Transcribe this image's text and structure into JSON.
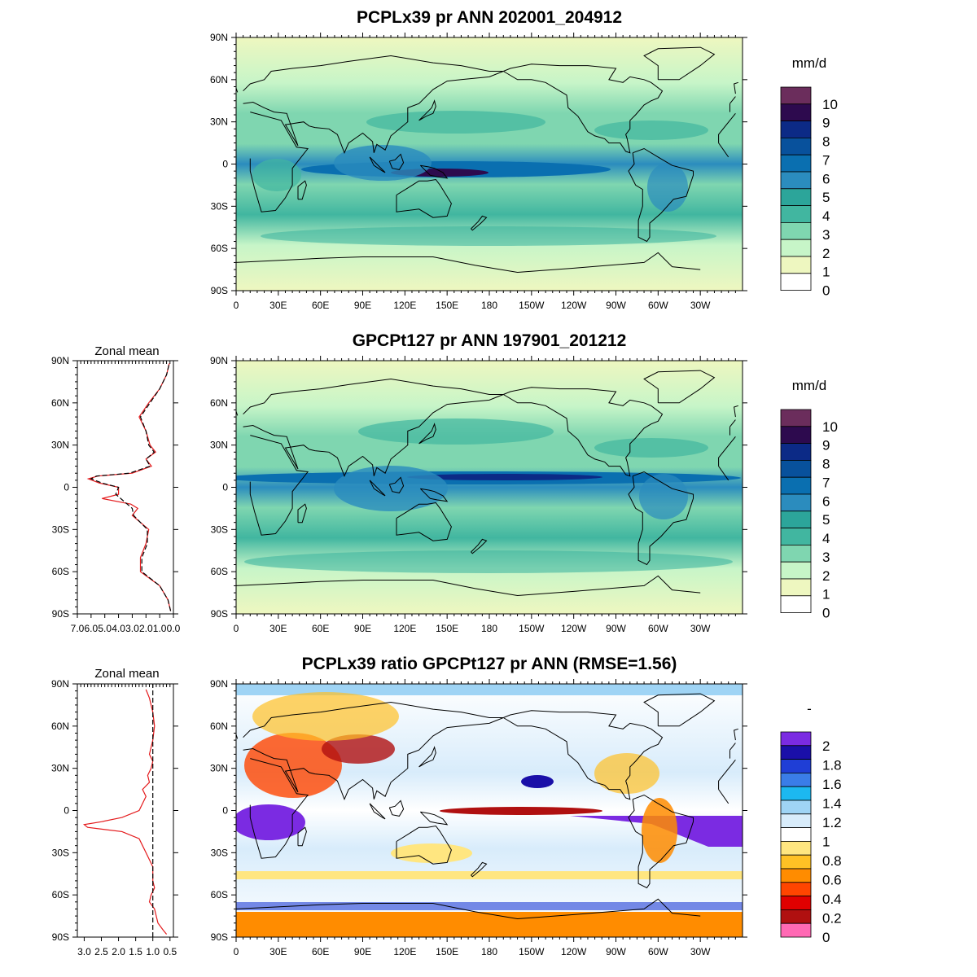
{
  "lat_ticks": [
    "90N",
    "60N",
    "30N",
    "0",
    "30S",
    "60S",
    "90S"
  ],
  "lon_ticks": [
    "0",
    "30E",
    "60E",
    "90E",
    "120E",
    "150E",
    "180",
    "150W",
    "120W",
    "90W",
    "60W",
    "30W"
  ],
  "panels": [
    {
      "title": "PCPLx39 pr ANN 202001_204912",
      "units": "mm/d",
      "colorbar": {
        "labels": [
          "10",
          "9",
          "8",
          "7",
          "6",
          "5",
          "4",
          "3",
          "2",
          "1",
          "0"
        ],
        "colors": [
          "#6b2d5c",
          "#2d0a4e",
          "#0c2a86",
          "#08519c",
          "#0a6fb0",
          "#2b8cbe",
          "#2ca59a",
          "#41b6a0",
          "#7fd6b0",
          "#c7f5c8",
          "#eef7c0",
          "#ffffff"
        ]
      }
    },
    {
      "title": "GPCPt127 pr ANN 197901_201212",
      "units": "mm/d",
      "colorbar": {
        "labels": [
          "10",
          "9",
          "8",
          "7",
          "6",
          "5",
          "4",
          "3",
          "2",
          "1",
          "0"
        ],
        "colors": [
          "#6b2d5c",
          "#2d0a4e",
          "#0c2a86",
          "#08519c",
          "#0a6fb0",
          "#2b8cbe",
          "#2ca59a",
          "#41b6a0",
          "#7fd6b0",
          "#c7f5c8",
          "#eef7c0",
          "#ffffff"
        ]
      },
      "zonal_mean": {
        "title": "Zonal mean",
        "x_ticks": [
          "7.0",
          "6.0",
          "5.0",
          "4.0",
          "3.0",
          "2.0",
          "1.0",
          "0.0"
        ]
      }
    },
    {
      "title": "PCPLx39 ratio GPCPt127 pr ANN (RMSE=1.56)",
      "units": "-",
      "colorbar": {
        "labels": [
          "2",
          "1.8",
          "1.6",
          "1.4",
          "1.2",
          "1",
          "0.8",
          "0.6",
          "0.4",
          "0.2",
          "0"
        ],
        "colors": [
          "#7b2be2",
          "#1a0fa8",
          "#1f3ed6",
          "#3a7de8",
          "#1cb8f0",
          "#9fd4f5",
          "#d8ecfb",
          "#ffffff",
          "#ffe680",
          "#ffc125",
          "#ff8c00",
          "#ff4500",
          "#e00000",
          "#b01010",
          "#ff69b4"
        ]
      },
      "zonal_mean": {
        "title": "Zonal mean",
        "x_ticks": [
          "3.0",
          "2.5",
          "2.0",
          "1.5",
          "1.0",
          "0.5"
        ]
      }
    }
  ],
  "chart_data": [
    {
      "type": "heatmap",
      "title": "PCPLx39 pr ANN 202001_204912",
      "colorbar_label": "mm/d",
      "xlim": [
        0,
        360
      ],
      "ylim": [
        -90,
        90
      ]
    },
    {
      "type": "line",
      "title": "Zonal mean",
      "xlim": [
        7.0,
        0.0
      ],
      "ylim": [
        -90,
        90
      ],
      "series": [
        {
          "color": "#e41a1c",
          "style": "solid",
          "y": [
            -88,
            -80,
            -70,
            -60,
            -50,
            -40,
            -30,
            -20,
            -15,
            -12,
            -8,
            -5,
            0,
            3,
            6,
            8,
            10,
            15,
            20,
            25,
            30,
            40,
            50,
            60,
            70,
            80,
            88
          ],
          "x": [
            0.2,
            0.4,
            1.0,
            2.4,
            2.4,
            2.0,
            1.8,
            3.0,
            2.6,
            3.1,
            5.2,
            4.0,
            4.0,
            5.4,
            6.2,
            5.5,
            3.0,
            1.6,
            2.0,
            1.3,
            1.7,
            2.0,
            2.5,
            1.8,
            1.0,
            0.5,
            0.3
          ]
        },
        {
          "color": "#000000",
          "style": "dashed",
          "y": [
            -88,
            -80,
            -70,
            -60,
            -50,
            -40,
            -30,
            -20,
            -15,
            -10,
            -5,
            0,
            3,
            6,
            8,
            10,
            15,
            20,
            25,
            30,
            40,
            50,
            60,
            70,
            80,
            88
          ],
          "x": [
            0.2,
            0.4,
            1.0,
            2.3,
            2.3,
            1.9,
            1.9,
            2.9,
            3.0,
            3.6,
            4.2,
            4.0,
            5.2,
            6.0,
            5.6,
            3.2,
            1.7,
            2.0,
            1.4,
            1.8,
            2.0,
            2.4,
            1.7,
            1.0,
            0.5,
            0.3
          ]
        }
      ]
    },
    {
      "type": "heatmap",
      "title": "GPCPt127 pr ANN 197901_201212",
      "colorbar_label": "mm/d",
      "xlim": [
        0,
        360
      ],
      "ylim": [
        -90,
        90
      ]
    },
    {
      "type": "line",
      "title": "Zonal mean",
      "xlim": [
        3.2,
        0.4
      ],
      "ylim": [
        -90,
        90
      ],
      "series": [
        {
          "color": "#e41a1c",
          "style": "solid",
          "y": [
            -88,
            -85,
            -80,
            -75,
            -70,
            -65,
            -60,
            -55,
            -50,
            -40,
            -30,
            -25,
            -20,
            -15,
            -12,
            -10,
            -8,
            -5,
            0,
            5,
            10,
            15,
            20,
            25,
            30,
            35,
            40,
            50,
            60,
            70,
            80,
            86
          ],
          "x": [
            0.6,
            0.7,
            0.85,
            0.9,
            0.95,
            1.1,
            1.05,
            0.95,
            1.0,
            1.0,
            1.2,
            1.3,
            1.4,
            1.9,
            2.9,
            3.0,
            2.5,
            1.9,
            1.4,
            1.3,
            1.2,
            1.3,
            1.1,
            1.15,
            1.05,
            1.0,
            1.1,
            1.0,
            0.95,
            1.0,
            1.1,
            1.2
          ]
        },
        {
          "color": "#000000",
          "style": "dashed",
          "y": [
            -90,
            90
          ],
          "x": [
            1.0,
            1.0
          ]
        }
      ]
    },
    {
      "type": "heatmap",
      "title": "PCPLx39 ratio GPCPt127 pr ANN (RMSE=1.56)",
      "colorbar_label": "-",
      "xlim": [
        0,
        360
      ],
      "ylim": [
        -90,
        90
      ]
    }
  ]
}
